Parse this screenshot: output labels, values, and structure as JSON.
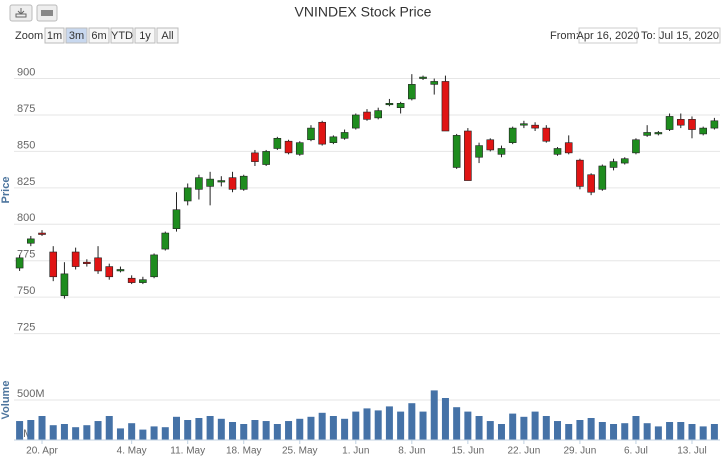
{
  "toolbar": {
    "zoom_label": "Zoom",
    "buttons": [
      "1m",
      "3m",
      "6m",
      "YTD",
      "1y",
      "All"
    ],
    "selected": 1,
    "from_label": "From:",
    "from": "Apr 16, 2020",
    "to_label": "To:",
    "to": "Jul 15, 2020"
  },
  "chart_data": [
    {
      "type": "candlestick",
      "title": "VNINDEX Stock Price",
      "y_label": "Price",
      "up_color": "#1e8c1e",
      "down_color": "#e01414",
      "open": [
        770,
        787,
        794,
        781,
        751,
        781,
        774,
        777,
        771,
        768,
        763,
        760,
        764,
        783,
        797,
        816,
        824,
        826,
        829,
        832,
        824,
        849,
        841,
        852,
        857,
        848,
        858,
        870,
        856,
        859,
        866,
        877,
        873,
        882,
        880,
        886,
        900,
        896,
        898,
        839,
        864,
        846,
        858,
        848,
        856,
        868,
        868,
        866,
        848,
        856,
        844,
        834,
        824,
        839,
        842,
        849,
        861,
        862,
        865,
        872,
        872,
        862,
        866
      ],
      "high": [
        779,
        792,
        796,
        785,
        774,
        784,
        776,
        785,
        773,
        771,
        765,
        764,
        780,
        795,
        822,
        828,
        834,
        836,
        833,
        836,
        834,
        851,
        851,
        860,
        858,
        857,
        868,
        871,
        861,
        865,
        876,
        879,
        880,
        886,
        884,
        903,
        902,
        900,
        902,
        862,
        866,
        856,
        859,
        854,
        867,
        871,
        870,
        868,
        853,
        861,
        845,
        835,
        841,
        845,
        846,
        859,
        868,
        864,
        876,
        876,
        874,
        867,
        873
      ],
      "low": [
        768,
        785,
        792,
        761,
        749,
        769,
        771,
        766,
        762,
        767,
        759,
        759,
        763,
        782,
        795,
        813,
        817,
        813,
        826,
        822,
        823,
        840,
        840,
        851,
        848,
        847,
        857,
        854,
        855,
        858,
        865,
        871,
        872,
        881,
        876,
        885,
        899,
        889,
        864,
        838,
        830,
        842,
        850,
        846,
        855,
        866,
        864,
        856,
        847,
        848,
        824,
        820,
        823,
        837,
        841,
        848,
        860,
        861,
        864,
        866,
        859,
        861,
        865
      ],
      "close": [
        777,
        790,
        793,
        764,
        766,
        771,
        773,
        768,
        764,
        769,
        760,
        762,
        779,
        794,
        810,
        825,
        832,
        831,
        830,
        824,
        833,
        843,
        850,
        859,
        849,
        856,
        866,
        855,
        860,
        863,
        875,
        872,
        878,
        883,
        883,
        896,
        901,
        898,
        864,
        861,
        830,
        854,
        851,
        852,
        866,
        869,
        866,
        857,
        852,
        849,
        826,
        822,
        840,
        843,
        845,
        858,
        863,
        863,
        874,
        868,
        865,
        866,
        871
      ],
      "ylim": [
        722,
        923
      ],
      "yticks": [
        725,
        750,
        775,
        800,
        825,
        850,
        875,
        900
      ],
      "grid": true
    },
    {
      "type": "bar",
      "y_label": "Volume",
      "color": "#4572a7",
      "categories": [
        null,
        null,
        "20. Apr",
        null,
        null,
        null,
        null,
        null,
        null,
        null,
        "4. May",
        null,
        null,
        null,
        null,
        "11. May",
        null,
        null,
        null,
        null,
        "18. May",
        null,
        null,
        null,
        null,
        "25. May",
        null,
        null,
        null,
        null,
        "1. Jun",
        null,
        null,
        null,
        null,
        "8. Jun",
        null,
        null,
        null,
        null,
        "15. Jun",
        null,
        null,
        null,
        null,
        "22. Jun",
        null,
        null,
        null,
        null,
        "29. Jun",
        null,
        null,
        null,
        null,
        "6. Jul",
        null,
        null,
        null,
        null,
        "13. Jul",
        null,
        null
      ],
      "values": [
        237,
        250,
        300,
        185,
        200,
        160,
        185,
        237,
        300,
        145,
        210,
        130,
        170,
        160,
        290,
        250,
        275,
        300,
        265,
        225,
        200,
        250,
        237,
        200,
        237,
        265,
        290,
        340,
        300,
        265,
        355,
        395,
        370,
        420,
        355,
        460,
        355,
        620,
        525,
        410,
        355,
        300,
        237,
        200,
        330,
        290,
        355,
        300,
        237,
        200,
        250,
        275,
        225,
        200,
        210,
        300,
        210,
        170,
        225,
        225,
        200,
        170,
        200
      ],
      "ylim": [
        0,
        1000
      ],
      "yticks": [
        {
          "value": 0,
          "label": "0M"
        },
        {
          "value": 500,
          "label": "500M"
        }
      ],
      "grid": true
    }
  ]
}
